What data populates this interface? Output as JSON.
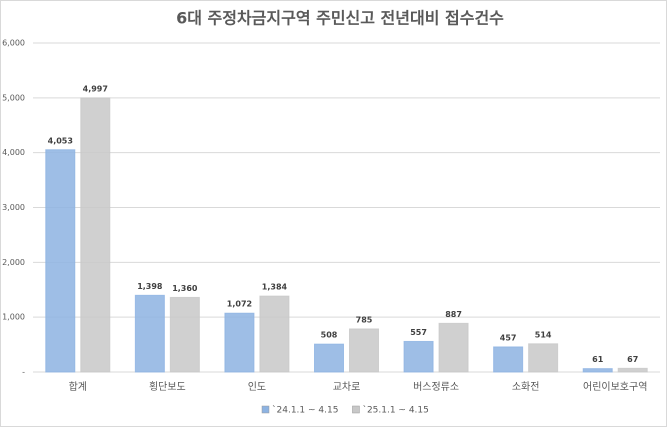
{
  "chart_data": {
    "type": "bar",
    "title": "6대 주정차금지구역 주민신고 전년대비 접수건수",
    "categories": [
      "합계",
      "횡단보도",
      "인도",
      "교차로",
      "버스정류소",
      "소화전",
      "어린이보호구역"
    ],
    "series": [
      {
        "name": "`24.1.1 ~ 4.15",
        "color": "#8db3e2",
        "values": [
          4053,
          1398,
          1072,
          508,
          557,
          457,
          61
        ],
        "value_labels": [
          "4,053",
          "1,398",
          "1,072",
          "508",
          "557",
          "457",
          "61"
        ]
      },
      {
        "name": "`25.1.1 ~ 4.15",
        "color": "#c8c8c8",
        "values": [
          4997,
          1360,
          1384,
          785,
          887,
          514,
          67
        ],
        "value_labels": [
          "4,997",
          "1,360",
          "1,384",
          "785",
          "887",
          "514",
          "67"
        ]
      }
    ],
    "ylim": [
      0,
      6000
    ],
    "yticks": [
      {
        "value": 0,
        "label": "-"
      },
      {
        "value": 1000,
        "label": "1,000"
      },
      {
        "value": 2000,
        "label": "2,000"
      },
      {
        "value": 3000,
        "label": "3,000"
      },
      {
        "value": 4000,
        "label": "4,000"
      },
      {
        "value": 5000,
        "label": "5,000"
      },
      {
        "value": 6000,
        "label": "6,000"
      }
    ],
    "grid": true,
    "legend": "bottom"
  }
}
